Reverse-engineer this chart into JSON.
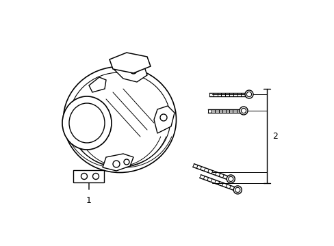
{
  "title": "",
  "background_color": "#ffffff",
  "line_color": "#000000",
  "line_width": 1.0,
  "label_1": "1",
  "label_2": "2",
  "fig_width": 4.89,
  "fig_height": 3.6,
  "dpi": 100
}
